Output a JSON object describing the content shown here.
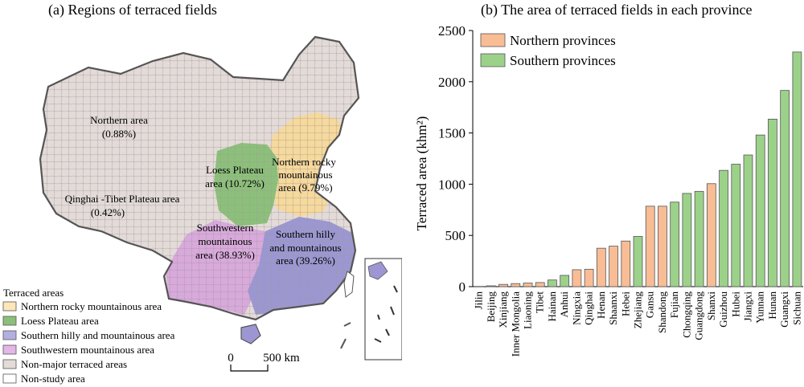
{
  "panel_a": {
    "title": "(a) Regions of terraced fields",
    "regions": [
      {
        "name": "Northern area",
        "share": "(0.88%)",
        "color": "#e4dbd8"
      },
      {
        "name": "Loess Plateau",
        "name2": "area (10.72%)",
        "color": "#8cc07a"
      },
      {
        "name": "Northern rocky",
        "name2": "mountainous",
        "share": "area (9.79%)",
        "color": "#f7d99c"
      },
      {
        "name": "Qinghai -Tibet Plateau area",
        "share": "(0.42%)",
        "color": "#e4dbd8"
      },
      {
        "name": "Southwestern",
        "name2": "mountainous",
        "share": "area (38.93%)",
        "color": "#d9a9dc"
      },
      {
        "name": "Southern hilly",
        "name2": "and mountainous",
        "share": "area (39.26%)",
        "color": "#9c97d2"
      }
    ],
    "legend_title": "Terraced areas",
    "legend": [
      {
        "label": "Northern rocky mountainous area",
        "color": "#fde6b8"
      },
      {
        "label": "Loess Plateau area",
        "color": "#8cc07a"
      },
      {
        "label": "Southern hilly and mountainous area",
        "color": "#b3afe0"
      },
      {
        "label": "Southwestern mountainous area",
        "color": "#e3b7e6"
      },
      {
        "label": "Non-major terraced areas",
        "color": "#e4dbd8"
      },
      {
        "label": "Non-study area",
        "color": "#ffffff"
      }
    ],
    "scale": {
      "zero": "0",
      "label": "500 km"
    }
  },
  "chart_data": {
    "type": "bar",
    "title": "(b) The area of terraced fields in each province",
    "ylabel": "Terraced area (khm²)",
    "xlabel": "",
    "ylim": [
      0,
      2500
    ],
    "yticks": [
      0,
      500,
      1000,
      1500,
      2000,
      2500
    ],
    "grid": false,
    "legend_position": "top-left",
    "series_legend": [
      {
        "name": "Northern provinces",
        "color": "#f9bd95"
      },
      {
        "name": "Southern provinces",
        "color": "#9cd18a"
      }
    ],
    "categories": [
      "Jilin",
      "Beijing",
      "Xinjiang",
      "Inner Mongolia",
      "Liaoning",
      "Tibet",
      "Hainan",
      "Anhui",
      "Ningxia",
      "Qinghai",
      "Henan",
      "Shaanxi",
      "Hebei",
      "Zhejiang",
      "Gansu",
      "Shandong",
      "Fujian",
      "Chongqing",
      "Guangdong",
      "Shanxi",
      "Guizhou",
      "Hubei",
      "Jiangxi",
      "Yunnan",
      "Hunan",
      "Guangxi",
      "Sichuan"
    ],
    "values": [
      2,
      8,
      22,
      30,
      35,
      40,
      65,
      110,
      165,
      170,
      375,
      395,
      445,
      490,
      785,
      785,
      825,
      910,
      930,
      1005,
      1135,
      1195,
      1285,
      1480,
      1635,
      1915,
      2290
    ],
    "groups": [
      "Northern",
      "Northern",
      "Northern",
      "Northern",
      "Northern",
      "Northern",
      "Southern",
      "Southern",
      "Northern",
      "Northern",
      "Northern",
      "Northern",
      "Northern",
      "Southern",
      "Northern",
      "Northern",
      "Southern",
      "Southern",
      "Southern",
      "Northern",
      "Southern",
      "Southern",
      "Southern",
      "Southern",
      "Southern",
      "Southern",
      "Southern"
    ]
  }
}
